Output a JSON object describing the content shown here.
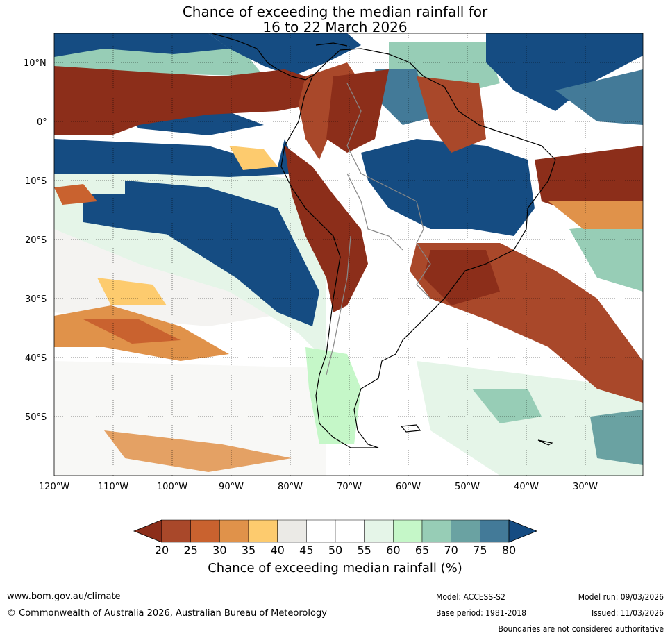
{
  "title_line1": "Chance of exceeding the median rainfall for",
  "title_line2": "16 to 22 March 2026",
  "lat_labels": [
    "10°N",
    "0°",
    "10°S",
    "20°S",
    "30°S",
    "40°S",
    "50°S"
  ],
  "lon_labels": [
    "120°W",
    "110°W",
    "100°W",
    "90°W",
    "80°W",
    "70°W",
    "60°W",
    "50°W",
    "40°W",
    "30°W"
  ],
  "colorbar": {
    "title": "Chance of exceeding median rainfall (%)",
    "ticks": [
      "20",
      "25",
      "30",
      "35",
      "40",
      "45",
      "50",
      "55",
      "60",
      "65",
      "70",
      "75",
      "80"
    ],
    "colors": [
      "#8c2e1a",
      "#a9482a",
      "#c9622f",
      "#e0924a",
      "#fdcb6e",
      "#ebeae6",
      "#ffffff",
      "#ffffff",
      "#e5f5e8",
      "#c5f7c8",
      "#97cdb6",
      "#6aa2a2",
      "#437a98",
      "#154c82"
    ]
  },
  "footer": {
    "url": "www.bom.gov.au/climate",
    "copyright": "© Commonwealth of Australia 2026, Australian Bureau of Meteorology",
    "model": "Model: ACCESS-S2",
    "base_period": "Base period: 1981-2018",
    "model_run": "Model run: 09/03/2026",
    "issued": "Issued: 11/03/2026",
    "disclaimer": "Boundaries are not considered authoritative"
  }
}
